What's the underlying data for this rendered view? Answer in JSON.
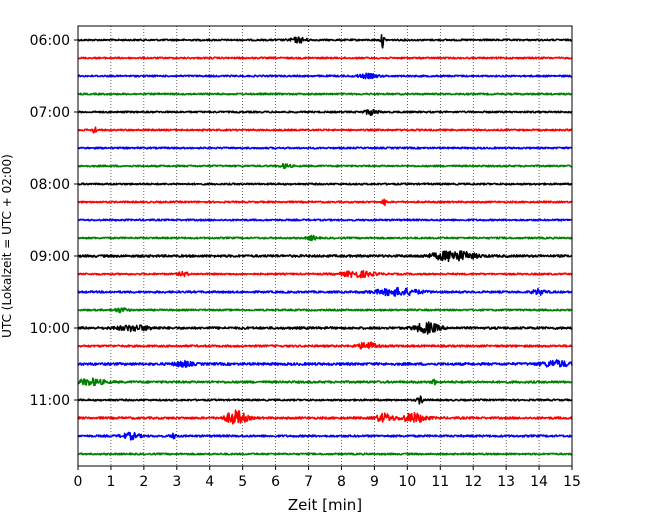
{
  "chart_data": {
    "type": "line",
    "title": "",
    "xlabel": "Zeit  [min]",
    "ylabel": "UTC (Lokalzeit = UTC + 02:00)",
    "xlim": [
      0,
      15
    ],
    "x_ticks": [
      "0",
      "1",
      "2",
      "3",
      "4",
      "5",
      "6",
      "7",
      "8",
      "9",
      "10",
      "11",
      "12",
      "13",
      "14",
      "15"
    ],
    "y_ticks": [
      {
        "label": "06:00",
        "trace": 0
      },
      {
        "label": "07:00",
        "trace": 4
      },
      {
        "label": "08:00",
        "trace": 8
      },
      {
        "label": "09:00",
        "trace": 12
      },
      {
        "label": "10:00",
        "trace": 16
      },
      {
        "label": "11:00",
        "trace": 20
      }
    ],
    "grid": "vertical dotted at each minute",
    "trace_interval_minutes": 15,
    "trace_colors": [
      "#000000",
      "#ff0000",
      "#0000ff",
      "#008000"
    ],
    "series": [
      {
        "start": "06:00",
        "color": "#000000",
        "base_amplitude": 1.0,
        "events": [
          {
            "t": 6.7,
            "amp": 2.5,
            "dur": 0.5
          },
          {
            "t": 9.25,
            "amp": 7,
            "dur": 0.1
          }
        ]
      },
      {
        "start": "06:15",
        "color": "#ff0000",
        "base_amplitude": 1.0,
        "events": []
      },
      {
        "start": "06:30",
        "color": "#0000ff",
        "base_amplitude": 1.0,
        "events": [
          {
            "t": 8.8,
            "amp": 2,
            "dur": 0.6
          }
        ]
      },
      {
        "start": "06:45",
        "color": "#008000",
        "base_amplitude": 1.0,
        "events": []
      },
      {
        "start": "07:00",
        "color": "#000000",
        "base_amplitude": 1.0,
        "events": [
          {
            "t": 8.9,
            "amp": 2.5,
            "dur": 0.4
          }
        ]
      },
      {
        "start": "07:15",
        "color": "#ff0000",
        "base_amplitude": 1.0,
        "events": [
          {
            "t": 0.5,
            "amp": 5,
            "dur": 0.1
          }
        ]
      },
      {
        "start": "07:30",
        "color": "#0000ff",
        "base_amplitude": 1.0,
        "events": []
      },
      {
        "start": "07:45",
        "color": "#008000",
        "base_amplitude": 1.0,
        "events": [
          {
            "t": 6.3,
            "amp": 2,
            "dur": 0.3
          }
        ]
      },
      {
        "start": "08:00",
        "color": "#000000",
        "base_amplitude": 1.0,
        "events": []
      },
      {
        "start": "08:15",
        "color": "#ff0000",
        "base_amplitude": 1.0,
        "events": [
          {
            "t": 9.3,
            "amp": 4,
            "dur": 0.1
          }
        ]
      },
      {
        "start": "08:30",
        "color": "#0000ff",
        "base_amplitude": 1.0,
        "events": []
      },
      {
        "start": "08:45",
        "color": "#008000",
        "base_amplitude": 1.0,
        "events": [
          {
            "t": 7.1,
            "amp": 2,
            "dur": 0.3
          }
        ]
      },
      {
        "start": "09:00",
        "color": "#000000",
        "base_amplitude": 1.4,
        "events": [
          {
            "t": 11.4,
            "amp": 5,
            "dur": 1.2
          }
        ]
      },
      {
        "start": "09:15",
        "color": "#ff0000",
        "base_amplitude": 1.0,
        "events": [
          {
            "t": 8.5,
            "amp": 3,
            "dur": 1.0
          },
          {
            "t": 3.2,
            "amp": 2,
            "dur": 0.3
          }
        ]
      },
      {
        "start": "09:30",
        "color": "#0000ff",
        "base_amplitude": 1.2,
        "events": [
          {
            "t": 9.7,
            "amp": 3.5,
            "dur": 1.3
          },
          {
            "t": 14.0,
            "amp": 2.5,
            "dur": 0.4
          }
        ]
      },
      {
        "start": "09:45",
        "color": "#008000",
        "base_amplitude": 1.0,
        "events": [
          {
            "t": 1.3,
            "amp": 2,
            "dur": 0.4
          }
        ]
      },
      {
        "start": "10:00",
        "color": "#000000",
        "base_amplitude": 1.4,
        "events": [
          {
            "t": 10.6,
            "amp": 5,
            "dur": 0.7
          },
          {
            "t": 1.7,
            "amp": 2.5,
            "dur": 1.0
          }
        ]
      },
      {
        "start": "10:15",
        "color": "#ff0000",
        "base_amplitude": 1.2,
        "events": [
          {
            "t": 8.8,
            "amp": 3.5,
            "dur": 0.6
          }
        ]
      },
      {
        "start": "10:30",
        "color": "#0000ff",
        "base_amplitude": 1.5,
        "events": [
          {
            "t": 14.5,
            "amp": 3,
            "dur": 0.8
          },
          {
            "t": 3.2,
            "amp": 2.5,
            "dur": 0.5
          }
        ]
      },
      {
        "start": "10:45",
        "color": "#008000",
        "base_amplitude": 1.3,
        "events": [
          {
            "t": 0.4,
            "amp": 3,
            "dur": 0.8
          },
          {
            "t": 10.8,
            "amp": 3.5,
            "dur": 0.1
          }
        ]
      },
      {
        "start": "11:00",
        "color": "#000000",
        "base_amplitude": 1.0,
        "events": [
          {
            "t": 10.4,
            "amp": 3.5,
            "dur": 0.2
          }
        ]
      },
      {
        "start": "11:15",
        "color": "#ff0000",
        "base_amplitude": 1.3,
        "events": [
          {
            "t": 4.8,
            "amp": 7,
            "dur": 0.6
          },
          {
            "t": 9.3,
            "amp": 4,
            "dur": 0.5
          },
          {
            "t": 10.2,
            "amp": 4.5,
            "dur": 0.7
          }
        ]
      },
      {
        "start": "11:30",
        "color": "#0000ff",
        "base_amplitude": 1.2,
        "events": [
          {
            "t": 1.6,
            "amp": 3,
            "dur": 0.5
          },
          {
            "t": 2.9,
            "amp": 2,
            "dur": 0.2
          }
        ]
      },
      {
        "start": "11:45",
        "color": "#008000",
        "base_amplitude": 1.0,
        "events": []
      }
    ]
  }
}
